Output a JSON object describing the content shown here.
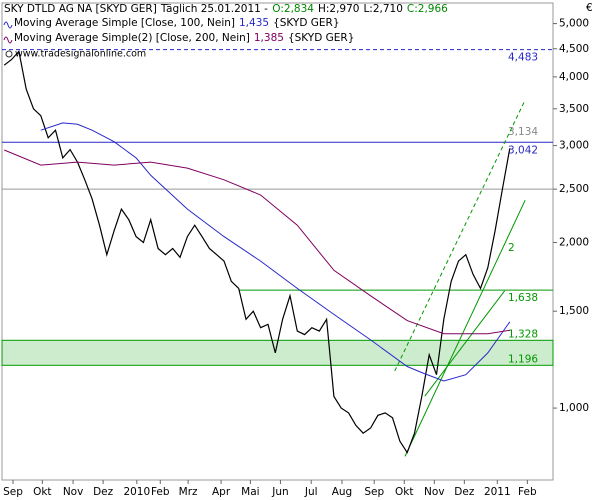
{
  "chart_data": {
    "type": "line",
    "log_scale": true,
    "title": "SKY DTLD AG NA [SKYD GER]",
    "subtitle": "Täglich 25.01.2011 -",
    "ohlc": [
      {
        "label": "O:2,834",
        "color": "#008800"
      },
      {
        "label": "H:2,970",
        "color": "#000000"
      },
      {
        "label": "L:2,710",
        "color": "#000000"
      },
      {
        "label": "C:2,966",
        "color": "#008800"
      }
    ],
    "watermark": "www.tradesignalonline.com",
    "currency": "€",
    "xlim": [
      -0.3,
      74.9
    ],
    "ylim": [
      740,
      5450
    ],
    "xticks": [
      {
        "value": 1.2,
        "label": "Sep"
      },
      {
        "value": 5.2,
        "label": "Okt"
      },
      {
        "value": 9.4,
        "label": "Nov"
      },
      {
        "value": 13.5,
        "label": "Dez"
      },
      {
        "value": 18.1,
        "label": "2010"
      },
      {
        "value": 21.3,
        "label": "Feb"
      },
      {
        "value": 25.1,
        "label": "Mrz"
      },
      {
        "value": 29.6,
        "label": "Apr"
      },
      {
        "value": 33.6,
        "label": "Mai"
      },
      {
        "value": 37.7,
        "label": "Jun"
      },
      {
        "value": 41.9,
        "label": "Jul"
      },
      {
        "value": 46.1,
        "label": "Aug"
      },
      {
        "value": 50.5,
        "label": "Sep"
      },
      {
        "value": 54.6,
        "label": "Okt"
      },
      {
        "value": 58.7,
        "label": "Nov"
      },
      {
        "value": 62.8,
        "label": "Dez"
      },
      {
        "value": 67.3,
        "label": "2011"
      },
      {
        "value": 71.4,
        "label": "Feb"
      }
    ],
    "yticks": [
      {
        "value": 1000,
        "label": "1,000"
      },
      {
        "value": 1500,
        "label": "1,500"
      },
      {
        "value": 2000,
        "label": "2,000"
      },
      {
        "value": 2500,
        "label": "2,500"
      },
      {
        "value": 3000,
        "label": "3,000"
      },
      {
        "value": 3500,
        "label": "3,500"
      },
      {
        "value": 4000,
        "label": "4,000"
      },
      {
        "value": 4500,
        "label": "4,500"
      },
      {
        "value": 5000,
        "label": "5,000"
      }
    ],
    "series": [
      {
        "name": "SKY DTLD AG NA [SKYD GER]",
        "color": "#000000",
        "values": [
          4200,
          4300,
          4450,
          3800,
          3500,
          3400,
          3100,
          3200,
          2850,
          2950,
          2800,
          2600,
          2400,
          2150,
          1900,
          2100,
          2300,
          2200,
          2050,
          2000,
          2200,
          1950,
          1900,
          1950,
          1880,
          2050,
          2150,
          2050,
          1950,
          1900,
          1850,
          1700,
          1650,
          1450,
          1500,
          1400,
          1420,
          1260,
          1450,
          1600,
          1380,
          1360,
          1400,
          1380,
          1450,
          1050,
          1000,
          980,
          930,
          900,
          920,
          970,
          980,
          960,
          870,
          830,
          900,
          1050,
          1250,
          1150,
          1450,
          1700,
          1850,
          1900,
          1750,
          1650,
          1800,
          2100,
          2500,
          2966
        ]
      },
      {
        "name": "Moving Average Simple [Close, 100, Nein]",
        "value_label": "1,435",
        "suffix": "{SKYD GER}",
        "color": "#2828c8",
        "x": [
          5,
          8,
          10,
          12,
          15,
          18,
          20,
          25,
          30,
          35,
          40,
          45,
          50,
          55,
          57,
          60,
          63,
          66,
          69
        ],
        "values": [
          3200,
          3300,
          3280,
          3200,
          3050,
          2850,
          2650,
          2300,
          2050,
          1850,
          1650,
          1480,
          1330,
          1190,
          1160,
          1120,
          1150,
          1260,
          1435
        ]
      },
      {
        "name": "Moving Average Simple(2) [Close, 200, Nein]",
        "value_label": "1,385",
        "suffix": "{SKYD GER}",
        "color": "#800060",
        "x": [
          0,
          5,
          10,
          15,
          20,
          25,
          30,
          35,
          40,
          45,
          50,
          55,
          60,
          63,
          66,
          69
        ],
        "values": [
          2945,
          2765,
          2800,
          2765,
          2800,
          2730,
          2600,
          2440,
          2150,
          1780,
          1600,
          1442,
          1365,
          1365,
          1365,
          1385
        ]
      }
    ],
    "levels": [
      {
        "value": 4483,
        "label": "4,483",
        "color": "#2828c8",
        "dashed": true,
        "from": -0.3
      },
      {
        "value": 3042,
        "label": "3,042",
        "color": "#2828c8",
        "from": -0.3
      },
      {
        "value": 3134,
        "label": "3,134",
        "color": "#888888",
        "line": false
      },
      {
        "value": 2500,
        "color": "#999999",
        "from": -0.3
      },
      {
        "value": 1638,
        "label": "1,638",
        "color": "#009900",
        "from": 32
      }
    ],
    "band": {
      "values": [
        1196,
        1328
      ],
      "labels": [
        "1,196",
        "1,328"
      ],
      "color": "#009900",
      "fill": "#cdeccd"
    },
    "trendlines": [
      {
        "color": "#009900",
        "dashed": true,
        "points": [
          [
            53.3,
            1168
          ],
          [
            71.1,
            3632
          ]
        ]
      },
      {
        "color": "#009900",
        "points": [
          [
            54.7,
            817
          ],
          [
            71.1,
            2387
          ]
        ]
      },
      {
        "color": "#009900",
        "points": [
          [
            57.4,
            1051
          ],
          [
            68.3,
            1634
          ]
        ]
      }
    ],
    "annotations": [
      "2"
    ]
  }
}
